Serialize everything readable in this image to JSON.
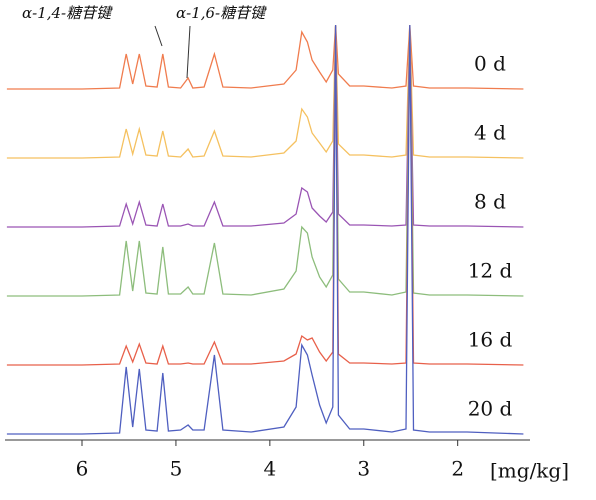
{
  "chart_data": {
    "type": "stacked-line",
    "annotations": [
      "α-1,4-糖苷键",
      "α-1,6-糖苷键"
    ],
    "x_label": "[mg/kg]",
    "x": [
      6.8,
      6.0,
      5.6,
      5.53,
      5.46,
      5.39,
      5.32,
      5.2,
      5.14,
      5.08,
      4.95,
      4.87,
      4.82,
      4.7,
      4.59,
      4.5,
      4.2,
      3.85,
      3.72,
      3.66,
      3.6,
      3.55,
      3.47,
      3.4,
      3.33,
      3.3,
      3.27,
      3.15,
      3.0,
      2.7,
      2.55,
      2.51,
      2.47,
      2.3,
      1.9,
      1.3
    ],
    "xlim": [
      6.82,
      1.23
    ],
    "xticks": [
      6,
      5,
      4,
      3,
      2
    ],
    "series": [
      {
        "name": "0 d",
        "color": "#f07c4e",
        "values": [
          1,
          1,
          2,
          36,
          6,
          36,
          4,
          3,
          36,
          3,
          2,
          12,
          2,
          3,
          36,
          3,
          2,
          6,
          20,
          58,
          48,
          30,
          18,
          8,
          20,
          65,
          16,
          4,
          4,
          2,
          4,
          65,
          4,
          2,
          2,
          1
        ]
      },
      {
        "name": "4 d",
        "color": "#f5c160",
        "values": [
          1,
          1,
          2,
          30,
          5,
          30,
          4,
          3,
          28,
          3,
          2,
          10,
          2,
          3,
          28,
          3,
          2,
          6,
          18,
          50,
          42,
          26,
          16,
          7,
          18,
          133,
          15,
          4,
          4,
          2,
          4,
          133,
          4,
          2,
          2,
          1
        ]
      },
      {
        "name": "8 d",
        "color": "#9a55b4",
        "values": [
          1,
          1,
          2,
          24,
          4,
          26,
          3,
          2,
          24,
          2,
          2,
          4,
          2,
          2,
          26,
          2,
          2,
          5,
          14,
          40,
          36,
          20,
          12,
          6,
          16,
          201,
          14,
          3,
          3,
          2,
          3,
          201,
          3,
          2,
          2,
          1
        ]
      },
      {
        "name": "12 d",
        "color": "#8dbd7c",
        "values": [
          1,
          1,
          2,
          56,
          6,
          56,
          4,
          3,
          50,
          3,
          3,
          10,
          3,
          3,
          54,
          3,
          2,
          8,
          26,
          70,
          64,
          40,
          20,
          10,
          22,
          271,
          18,
          5,
          5,
          2,
          5,
          271,
          4,
          2,
          2,
          1
        ]
      },
      {
        "name": "16 d",
        "color": "#e8604a",
        "values": [
          1,
          1,
          2,
          20,
          4,
          22,
          3,
          2,
          20,
          2,
          2,
          3,
          2,
          2,
          24,
          2,
          2,
          5,
          12,
          30,
          26,
          28,
          14,
          5,
          14,
          340,
          12,
          3,
          3,
          2,
          3,
          340,
          3,
          2,
          2,
          1
        ]
      },
      {
        "name": "20 d",
        "color": "#4f5fc0",
        "values": [
          1,
          1,
          2,
          68,
          8,
          66,
          5,
          4,
          62,
          4,
          5,
          10,
          5,
          5,
          80,
          5,
          3,
          8,
          28,
          90,
          80,
          60,
          30,
          12,
          28,
          410,
          20,
          6,
          6,
          3,
          6,
          410,
          5,
          3,
          3,
          1
        ]
      }
    ]
  }
}
